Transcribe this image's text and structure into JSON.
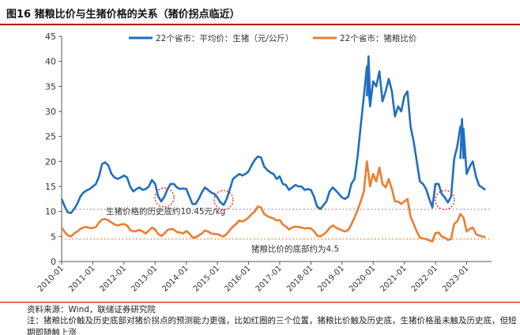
{
  "figure": {
    "title": "图16 猪粮比价与生猪价格的关系（猪价拐点临近）",
    "source": "资料来源：Wind，联储证券研究院",
    "note": "注：猪粮比价触及历史底部对猪价拐点的预测能力更强，比如红圈的三个位置，猪粮比价触及历史底，生猪价格虽未触及历史底，但短期即随触上涨"
  },
  "colors": {
    "hog": "#1f6fc0",
    "ratio": "#ed7d31",
    "circle": "#e0302a",
    "hline_hog": "#9a9a9a",
    "hline_ratio": "#ed7d31"
  },
  "chart_data": {
    "type": "line",
    "ylim": [
      0,
      45
    ],
    "yticks": [
      0,
      5,
      10,
      15,
      20,
      25,
      30,
      35,
      40,
      45
    ],
    "xlim": [
      2010.0,
      2023.8
    ],
    "xticks": [
      "2010-01",
      "2011-01",
      "2012-01",
      "2013-01",
      "2014-01",
      "2015-01",
      "2016-01",
      "2017-01",
      "2018-01",
      "2019-01",
      "2020-01",
      "2021-01",
      "2022-01",
      "2023-01"
    ],
    "series": [
      {
        "name": "22个省市：平均价：生猪（元/公斤）",
        "color_key": "hog",
        "x": [
          2010.0,
          2010.1,
          2010.2,
          2010.3,
          2010.4,
          2010.5,
          2010.6,
          2010.7,
          2010.8,
          2010.9,
          2011.0,
          2011.1,
          2011.2,
          2011.3,
          2011.4,
          2011.5,
          2011.6,
          2011.7,
          2011.8,
          2011.9,
          2012.0,
          2012.1,
          2012.2,
          2012.3,
          2012.4,
          2012.5,
          2012.6,
          2012.7,
          2012.8,
          2012.9,
          2013.0,
          2013.1,
          2013.2,
          2013.3,
          2013.4,
          2013.5,
          2013.6,
          2013.7,
          2013.8,
          2013.9,
          2014.0,
          2014.1,
          2014.2,
          2014.3,
          2014.4,
          2014.5,
          2014.6,
          2014.7,
          2014.8,
          2014.9,
          2015.0,
          2015.1,
          2015.2,
          2015.3,
          2015.4,
          2015.5,
          2015.6,
          2015.7,
          2015.8,
          2015.9,
          2016.0,
          2016.1,
          2016.2,
          2016.3,
          2016.4,
          2016.5,
          2016.6,
          2016.7,
          2016.8,
          2016.9,
          2017.0,
          2017.1,
          2017.2,
          2017.3,
          2017.4,
          2017.5,
          2017.6,
          2017.7,
          2017.8,
          2017.9,
          2018.0,
          2018.1,
          2018.2,
          2018.3,
          2018.4,
          2018.5,
          2018.6,
          2018.7,
          2018.8,
          2018.9,
          2019.0,
          2019.1,
          2019.2,
          2019.3,
          2019.4,
          2019.5,
          2019.6,
          2019.7,
          2019.8,
          2019.9,
          2020.0,
          2020.1,
          2020.2,
          2020.3,
          2020.4,
          2020.5,
          2020.6,
          2020.7,
          2020.8,
          2020.9,
          2021.0,
          2021.1,
          2021.2,
          2021.3,
          2021.4,
          2021.5,
          2021.6,
          2021.7,
          2021.8,
          2021.9,
          2022.0,
          2022.1,
          2022.2,
          2022.3,
          2022.4,
          2022.5,
          2022.6,
          2022.7,
          2022.8,
          2022.9,
          2023.0,
          2023.1,
          2023.2,
          2023.3,
          2023.4,
          2023.5,
          2023.6
        ],
        "values": [
          12.5,
          11.0,
          9.8,
          9.7,
          10.5,
          11.5,
          13.0,
          13.8,
          14.2,
          14.5,
          15.0,
          15.5,
          17.0,
          19.5,
          19.8,
          19.2,
          17.5,
          16.8,
          16.5,
          16.8,
          17.2,
          16.8,
          15.0,
          14.0,
          14.5,
          14.8,
          14.3,
          14.5,
          15.0,
          16.3,
          15.5,
          13.0,
          12.0,
          13.0,
          14.5,
          15.5,
          15.5,
          14.8,
          14.5,
          14.6,
          14.5,
          13.0,
          11.5,
          11.5,
          12.5,
          13.8,
          14.8,
          14.3,
          13.8,
          13.5,
          12.8,
          11.8,
          11.3,
          12.5,
          14.5,
          16.5,
          17.0,
          17.5,
          17.2,
          17.5,
          18.0,
          19.3,
          20.3,
          21.0,
          20.8,
          19.0,
          18.3,
          17.8,
          17.5,
          16.5,
          17.0,
          15.5,
          15.3,
          14.3,
          14.8,
          15.3,
          15.0,
          15.0,
          14.3,
          14.5,
          14.3,
          13.0,
          11.0,
          10.5,
          11.2,
          12.0,
          14.0,
          14.8,
          14.2,
          13.5,
          12.8,
          12.5,
          13.0,
          15.5,
          16.5,
          21.0,
          27.0,
          33.0,
          39.0,
          31.0,
          36.0,
          35.0,
          38.0,
          32.0,
          34.0,
          36.5,
          34.0,
          29.0,
          31.0,
          30.0,
          33.0,
          34.0,
          27.0,
          24.0,
          20.0,
          16.0,
          15.5,
          14.5,
          12.5,
          10.8,
          15.5,
          15.5,
          13.5,
          12.8,
          11.8,
          13.0,
          20.5,
          23.0,
          27.0,
          26.5,
          17.5,
          19.0,
          20.0,
          17.0,
          15.2,
          14.8,
          14.3
        ],
        "peak_markers": [
          {
            "x": 2019.85,
            "v": 41.0
          },
          {
            "x": 2022.85,
            "v": 28.5
          }
        ]
      },
      {
        "name": "22个省市：猪粮比价",
        "color_key": "ratio",
        "x": [
          2010.0,
          2010.1,
          2010.2,
          2010.3,
          2010.4,
          2010.5,
          2010.6,
          2010.7,
          2010.8,
          2010.9,
          2011.0,
          2011.1,
          2011.2,
          2011.3,
          2011.4,
          2011.5,
          2011.6,
          2011.7,
          2011.8,
          2011.9,
          2012.0,
          2012.1,
          2012.2,
          2012.3,
          2012.4,
          2012.5,
          2012.6,
          2012.7,
          2012.8,
          2012.9,
          2013.0,
          2013.1,
          2013.2,
          2013.3,
          2013.4,
          2013.5,
          2013.6,
          2013.7,
          2013.8,
          2013.9,
          2014.0,
          2014.1,
          2014.2,
          2014.3,
          2014.4,
          2014.5,
          2014.6,
          2014.7,
          2014.8,
          2014.9,
          2015.0,
          2015.1,
          2015.2,
          2015.3,
          2015.4,
          2015.5,
          2015.6,
          2015.7,
          2015.8,
          2015.9,
          2016.0,
          2016.1,
          2016.2,
          2016.3,
          2016.4,
          2016.5,
          2016.6,
          2016.7,
          2016.8,
          2016.9,
          2017.0,
          2017.1,
          2017.2,
          2017.3,
          2017.4,
          2017.5,
          2017.6,
          2017.7,
          2017.8,
          2017.9,
          2018.0,
          2018.1,
          2018.2,
          2018.3,
          2018.4,
          2018.5,
          2018.6,
          2018.7,
          2018.8,
          2018.9,
          2019.0,
          2019.1,
          2019.2,
          2019.3,
          2019.4,
          2019.5,
          2019.6,
          2019.7,
          2019.8,
          2019.9,
          2020.0,
          2020.1,
          2020.2,
          2020.3,
          2020.4,
          2020.5,
          2020.6,
          2020.7,
          2020.8,
          2020.9,
          2021.0,
          2021.1,
          2021.2,
          2021.3,
          2021.4,
          2021.5,
          2021.6,
          2021.7,
          2021.8,
          2021.9,
          2022.0,
          2022.1,
          2022.2,
          2022.3,
          2022.4,
          2022.5,
          2022.6,
          2022.7,
          2022.8,
          2022.9,
          2023.0,
          2023.1,
          2023.2,
          2023.3,
          2023.4,
          2023.5,
          2023.6
        ],
        "values": [
          6.8,
          5.9,
          5.2,
          5.0,
          5.6,
          6.0,
          6.5,
          6.8,
          6.9,
          6.7,
          6.7,
          6.9,
          7.8,
          8.4,
          8.5,
          8.2,
          7.8,
          7.4,
          7.2,
          7.4,
          7.5,
          7.2,
          6.3,
          6.0,
          6.1,
          6.3,
          6.0,
          5.6,
          6.2,
          6.8,
          6.4,
          5.5,
          5.1,
          5.6,
          6.3,
          6.5,
          6.4,
          5.9,
          5.8,
          5.6,
          6.1,
          5.6,
          4.8,
          4.8,
          5.2,
          5.6,
          6.2,
          6.0,
          5.6,
          5.5,
          5.5,
          5.2,
          5.0,
          5.5,
          6.3,
          7.0,
          7.5,
          8.2,
          8.0,
          8.3,
          8.8,
          9.5,
          10.0,
          11.0,
          10.8,
          9.5,
          9.1,
          8.8,
          8.6,
          8.2,
          8.3,
          7.4,
          7.0,
          6.4,
          6.8,
          7.0,
          6.9,
          6.8,
          6.6,
          6.7,
          6.6,
          6.1,
          5.2,
          5.0,
          5.4,
          5.9,
          6.7,
          7.2,
          6.8,
          6.5,
          6.2,
          6.0,
          6.3,
          7.4,
          8.8,
          10.3,
          12.0,
          14.0,
          20.0,
          15.0,
          17.5,
          16.0,
          18.8,
          15.5,
          14.8,
          16.5,
          14.5,
          12.0,
          12.0,
          11.5,
          12.0,
          12.5,
          9.0,
          7.5,
          6.0,
          4.8,
          4.6,
          4.5,
          4.2,
          4.0,
          5.7,
          5.8,
          5.0,
          4.8,
          4.3,
          4.5,
          7.5,
          8.0,
          9.5,
          8.8,
          6.0,
          6.5,
          6.8,
          5.5,
          5.2,
          5.0,
          4.9
        ]
      }
    ],
    "reference_lines": [
      {
        "value": 10.45,
        "label": "生猪价格的历史底约10.45元/kg",
        "color_key": "hline_hog"
      },
      {
        "value": 4.5,
        "label": "猪粮比价的底部约为4.5",
        "color_key": "hline_ratio"
      }
    ],
    "circles": [
      {
        "x": 2013.3,
        "y": 12.8
      },
      {
        "x": 2015.2,
        "y": 12.3
      },
      {
        "x": 2022.3,
        "y": 12.3
      }
    ]
  }
}
